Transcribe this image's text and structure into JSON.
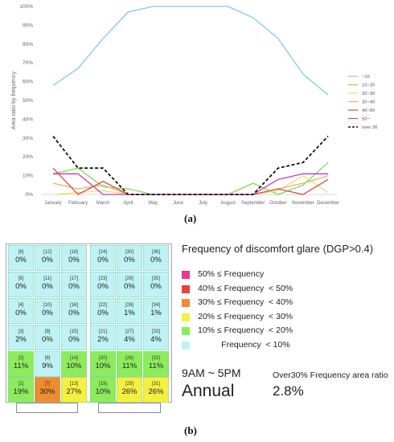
{
  "chart_data": {
    "type": "line",
    "ylabel": "Area ratio by frequency",
    "categories": [
      "January",
      "February",
      "March",
      "April",
      "May",
      "June",
      "July",
      "August",
      "September",
      "October",
      "November",
      "December"
    ],
    "ylim": [
      0,
      100
    ],
    "yticks": [
      "0%",
      "10%",
      "20%",
      "30%",
      "40%",
      "50%",
      "60%",
      "70%",
      "80%",
      "90%",
      "100%"
    ],
    "legend_position": "right",
    "series": [
      {
        "name": "~10",
        "color": "#7ecbea",
        "dash": false,
        "values": [
          58,
          67,
          83,
          97,
          100,
          100,
          100,
          100,
          94,
          83,
          64,
          53
        ]
      },
      {
        "name": "10~20",
        "color": "#7ed95a",
        "dash": false,
        "values": [
          11,
          14,
          4,
          3,
          0,
          0,
          0,
          0,
          6,
          0,
          5,
          17
        ]
      },
      {
        "name": "20~30",
        "color": "#f0e070",
        "dash": false,
        "values": [
          0,
          1,
          2,
          0,
          0,
          0,
          0,
          0,
          0,
          2,
          10,
          1
        ]
      },
      {
        "name": "30~40",
        "color": "#e8b070",
        "dash": false,
        "values": [
          6,
          3,
          5,
          0,
          0,
          0,
          0,
          0,
          0,
          3,
          6,
          10
        ]
      },
      {
        "name": "40~50",
        "color": "#e04848",
        "dash": false,
        "values": [
          14,
          0,
          7,
          0,
          0,
          0,
          0,
          0,
          0,
          3,
          0,
          8
        ]
      },
      {
        "name": "50~",
        "color": "#c43ab8",
        "dash": false,
        "values": [
          11,
          11,
          0,
          0,
          0,
          0,
          0,
          0,
          0,
          8,
          11,
          11
        ]
      },
      {
        "name": "over 30",
        "color": "#111111",
        "dash": true,
        "values": [
          31,
          14,
          14,
          0,
          0,
          0,
          0,
          0,
          0,
          14,
          17,
          31
        ]
      }
    ]
  },
  "panel_a_label": "(a)",
  "panel_b_label": "(b)",
  "grid": {
    "rows": [
      [
        {
          "id": "[6]",
          "v": "0%"
        },
        {
          "id": "[12]",
          "v": "0%"
        },
        {
          "id": "[18]",
          "v": "0%"
        },
        {
          "id": "[24]",
          "v": "0%"
        },
        {
          "id": "[30]",
          "v": "0%"
        },
        {
          "id": "[36]",
          "v": "0%"
        }
      ],
      [
        {
          "id": "[5]",
          "v": "0%"
        },
        {
          "id": "[11]",
          "v": "0%"
        },
        {
          "id": "[17]",
          "v": "0%"
        },
        {
          "id": "[23]",
          "v": "0%"
        },
        {
          "id": "[29]",
          "v": "0%"
        },
        {
          "id": "[35]",
          "v": "0%"
        }
      ],
      [
        {
          "id": "[4]",
          "v": "0%"
        },
        {
          "id": "[10]",
          "v": "0%"
        },
        {
          "id": "[16]",
          "v": "0%"
        },
        {
          "id": "[22]",
          "v": "0%"
        },
        {
          "id": "[28]",
          "v": "1%"
        },
        {
          "id": "[34]",
          "v": "1%"
        }
      ],
      [
        {
          "id": "[3]",
          "v": "2%"
        },
        {
          "id": "[9]",
          "v": "0%"
        },
        {
          "id": "[15]",
          "v": "0%"
        },
        {
          "id": "[21]",
          "v": "2%"
        },
        {
          "id": "[27]",
          "v": "4%"
        },
        {
          "id": "[33]",
          "v": "4%"
        }
      ],
      [
        {
          "id": "[2]",
          "v": "11%"
        },
        {
          "id": "[8]",
          "v": "9%"
        },
        {
          "id": "[14]",
          "v": "10%"
        },
        {
          "id": "[20]",
          "v": "10%"
        },
        {
          "id": "[26]",
          "v": "11%"
        },
        {
          "id": "[32]",
          "v": "11%"
        }
      ],
      [
        {
          "id": "[1]",
          "v": "19%"
        },
        {
          "id": "[7]",
          "v": "30%"
        },
        {
          "id": "[13]",
          "v": "27%"
        },
        {
          "id": "[19]",
          "v": "10%"
        },
        {
          "id": "[25]",
          "v": "26%"
        },
        {
          "id": "[31]",
          "v": "26%"
        }
      ]
    ]
  },
  "legend": {
    "title": "Frequency of discomfort glare (DGP>0.4)",
    "items": [
      {
        "label": "50% ≤ Frequency",
        "color": "#e8388c"
      },
      {
        "label": "40% ≤ Frequency  < 50%",
        "color": "#e84040"
      },
      {
        "label": "30% ≤ Frequency  < 40%",
        "color": "#f08c30"
      },
      {
        "label": "20% ≤ Frequency  < 30%",
        "color": "#f4f040"
      },
      {
        "label": "10% ≤ Frequency  < 20%",
        "color": "#8cec5c"
      },
      {
        "label": "          Frequency  < 10%",
        "color": "#bff2f2"
      }
    ]
  },
  "summary": {
    "time_range": "9AM ~ 5PM",
    "period": "Annual",
    "ratio_label": "Over30% Frequency area ratio",
    "ratio_value": "2.8%"
  }
}
